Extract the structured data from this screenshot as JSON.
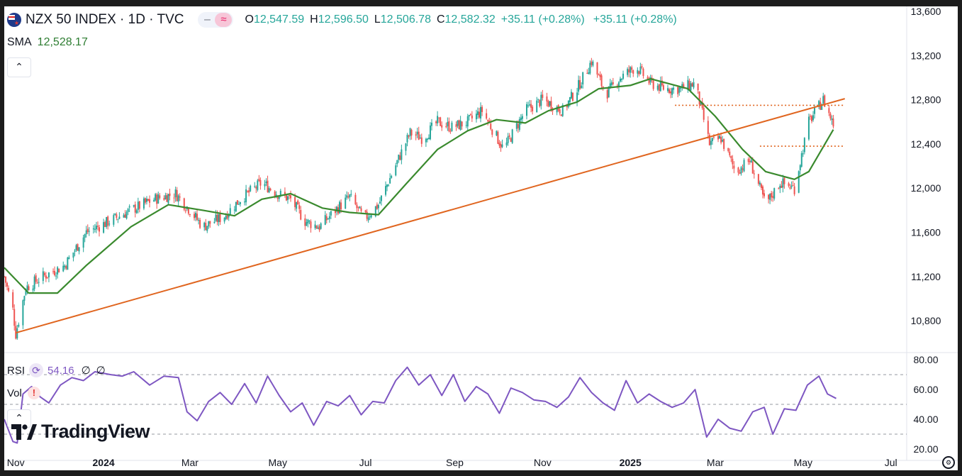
{
  "header": {
    "symbol": "NZX 50 INDEX · 1D · TVC",
    "ohlc": {
      "o_label": "O",
      "o": "12,547.59",
      "h_label": "H",
      "h": "12,596.50",
      "l_label": "L",
      "l": "12,506.78",
      "c_label": "C",
      "c": "12,582.32",
      "change": "+35.11 (+0.28%)",
      "change2": "+35.11 (+0.28%)"
    },
    "toggle_icons": [
      "line-toggle-icon",
      "wave-toggle-icon"
    ]
  },
  "sma": {
    "label": "SMA",
    "value": "12,528.17"
  },
  "rsi": {
    "label": "RSI",
    "value": "54.16",
    "na1": "∅",
    "na2": "∅"
  },
  "vol": {
    "label": "Vol",
    "warning": "!"
  },
  "branding": {
    "logo_text": "TradingView"
  },
  "colors": {
    "up": "#26a69a",
    "down": "#ef5350",
    "sma": "#3a8a2e",
    "trendline": "#e0651f",
    "rsi": "#7e57c2",
    "axis_text": "#131722"
  },
  "chart_data": [
    {
      "type": "candlestick",
      "title": "NZX 50 INDEX · 1D · TVC",
      "x_ticks": [
        "Nov",
        "2024",
        "Mar",
        "May",
        "Jul",
        "Sep",
        "Nov",
        "2025",
        "Mar",
        "May",
        "Jul"
      ],
      "x_tick_dates": [
        "2023-11-01",
        "2024-01-01",
        "2024-03-01",
        "2024-05-01",
        "2024-07-01",
        "2024-09-01",
        "2024-11-01",
        "2025-01-01",
        "2025-03-01",
        "2025-05-01",
        "2025-07-01"
      ],
      "xlim": [
        "2023-10-24",
        "2025-07-12"
      ],
      "y_ticks": [
        "13,600",
        "13,200",
        "12,800",
        "12,400",
        "12,000",
        "11,600",
        "11,200",
        "10,800"
      ],
      "ylim": [
        10550,
        13620
      ],
      "price_path": [
        [
          "2023-10-24",
          11200
        ],
        [
          "2023-10-30",
          10900
        ],
        [
          "2023-11-01",
          10680
        ],
        [
          "2023-11-08",
          11100
        ],
        [
          "2023-11-20",
          11200
        ],
        [
          "2023-12-05",
          11300
        ],
        [
          "2023-12-20",
          11600
        ],
        [
          "2024-01-05",
          11700
        ],
        [
          "2024-01-20",
          11800
        ],
        [
          "2024-02-05",
          11900
        ],
        [
          "2024-02-20",
          11950
        ],
        [
          "2024-03-01",
          11800
        ],
        [
          "2024-03-10",
          11650
        ],
        [
          "2024-03-25",
          11750
        ],
        [
          "2024-04-05",
          11900
        ],
        [
          "2024-04-20",
          12050
        ],
        [
          "2024-05-01",
          11950
        ],
        [
          "2024-05-10",
          11900
        ],
        [
          "2024-05-20",
          11700
        ],
        [
          "2024-05-30",
          11650
        ],
        [
          "2024-06-10",
          11800
        ],
        [
          "2024-06-20",
          11920
        ],
        [
          "2024-06-30",
          11720
        ],
        [
          "2024-07-10",
          11850
        ],
        [
          "2024-07-20",
          12150
        ],
        [
          "2024-08-01",
          12500
        ],
        [
          "2024-08-10",
          12450
        ],
        [
          "2024-08-20",
          12600
        ],
        [
          "2024-08-30",
          12550
        ],
        [
          "2024-09-10",
          12600
        ],
        [
          "2024-09-20",
          12700
        ],
        [
          "2024-10-05",
          12350
        ],
        [
          "2024-10-20",
          12700
        ],
        [
          "2024-11-01",
          12800
        ],
        [
          "2024-11-15",
          12700
        ],
        [
          "2024-11-25",
          12900
        ],
        [
          "2024-12-05",
          13150
        ],
        [
          "2024-12-15",
          12850
        ],
        [
          "2024-12-25",
          13000
        ],
        [
          "2025-01-05",
          13100
        ],
        [
          "2025-01-15",
          12950
        ],
        [
          "2025-01-25",
          12900
        ],
        [
          "2025-02-05",
          12900
        ],
        [
          "2025-02-15",
          12950
        ],
        [
          "2025-02-25",
          12400
        ],
        [
          "2025-03-05",
          12450
        ],
        [
          "2025-03-15",
          12150
        ],
        [
          "2025-03-25",
          12250
        ],
        [
          "2025-04-05",
          11850
        ],
        [
          "2025-04-15",
          12050
        ],
        [
          "2025-04-25",
          12000
        ],
        [
          "2025-05-05",
          12600
        ],
        [
          "2025-05-15",
          12800
        ],
        [
          "2025-05-22",
          12580
        ]
      ],
      "sma_path": [
        [
          "2023-10-24",
          11280
        ],
        [
          "2023-11-10",
          11050
        ],
        [
          "2023-11-30",
          11050
        ],
        [
          "2023-12-20",
          11300
        ],
        [
          "2024-01-20",
          11650
        ],
        [
          "2024-02-15",
          11850
        ],
        [
          "2024-03-10",
          11800
        ],
        [
          "2024-04-01",
          11750
        ],
        [
          "2024-04-20",
          11900
        ],
        [
          "2024-05-10",
          11950
        ],
        [
          "2024-06-01",
          11820
        ],
        [
          "2024-06-20",
          11780
        ],
        [
          "2024-07-10",
          11760
        ],
        [
          "2024-07-30",
          12050
        ],
        [
          "2024-08-20",
          12350
        ],
        [
          "2024-09-10",
          12520
        ],
        [
          "2024-09-30",
          12620
        ],
        [
          "2024-10-20",
          12590
        ],
        [
          "2024-11-05",
          12700
        ],
        [
          "2024-11-25",
          12780
        ],
        [
          "2024-12-10",
          12900
        ],
        [
          "2025-01-01",
          12930
        ],
        [
          "2025-01-15",
          12990
        ],
        [
          "2025-02-10",
          12900
        ],
        [
          "2025-03-01",
          12650
        ],
        [
          "2025-03-20",
          12350
        ],
        [
          "2025-04-05",
          12150
        ],
        [
          "2025-04-25",
          12080
        ],
        [
          "2025-05-05",
          12150
        ],
        [
          "2025-05-22",
          12530
        ]
      ],
      "trendline": [
        [
          "2023-11-01",
          10690
        ],
        [
          "2025-05-30",
          12810
        ]
      ],
      "resistance_lines": [
        {
          "from": "2025-02-01",
          "to": "2025-05-30",
          "value": 12750
        },
        {
          "from": "2025-04-01",
          "to": "2025-05-30",
          "value": 12380
        }
      ]
    },
    {
      "type": "line",
      "series": [
        {
          "name": "RSI",
          "color": "#7e57c2"
        }
      ],
      "y_ticks": [
        "80.00",
        "60.00",
        "40.00",
        "20.00"
      ],
      "ylim": [
        19,
        82
      ],
      "levels": [
        70,
        50,
        30
      ],
      "points": [
        [
          "2023-10-24",
          40
        ],
        [
          "2023-10-30",
          25
        ],
        [
          "2023-11-02",
          24
        ],
        [
          "2023-11-06",
          57
        ],
        [
          "2023-11-12",
          62
        ],
        [
          "2023-11-18",
          55
        ],
        [
          "2023-11-24",
          51
        ],
        [
          "2023-12-02",
          63
        ],
        [
          "2023-12-10",
          68
        ],
        [
          "2023-12-18",
          66
        ],
        [
          "2023-12-26",
          72
        ],
        [
          "2024-01-06",
          70
        ],
        [
          "2024-01-14",
          69
        ],
        [
          "2024-01-22",
          72
        ],
        [
          "2024-02-02",
          63
        ],
        [
          "2024-02-12",
          69
        ],
        [
          "2024-02-22",
          68
        ],
        [
          "2024-02-28",
          45
        ],
        [
          "2024-03-06",
          39
        ],
        [
          "2024-03-14",
          52
        ],
        [
          "2024-03-22",
          58
        ],
        [
          "2024-03-30",
          50
        ],
        [
          "2024-04-08",
          64
        ],
        [
          "2024-04-16",
          51
        ],
        [
          "2024-04-24",
          69
        ],
        [
          "2024-05-02",
          56
        ],
        [
          "2024-05-10",
          45
        ],
        [
          "2024-05-18",
          51
        ],
        [
          "2024-05-26",
          36
        ],
        [
          "2024-06-04",
          52
        ],
        [
          "2024-06-12",
          49
        ],
        [
          "2024-06-20",
          56
        ],
        [
          "2024-06-28",
          43
        ],
        [
          "2024-07-06",
          52
        ],
        [
          "2024-07-14",
          51
        ],
        [
          "2024-07-22",
          66
        ],
        [
          "2024-07-30",
          75
        ],
        [
          "2024-08-07",
          63
        ],
        [
          "2024-08-15",
          70
        ],
        [
          "2024-08-23",
          56
        ],
        [
          "2024-08-31",
          70
        ],
        [
          "2024-09-08",
          52
        ],
        [
          "2024-09-16",
          62
        ],
        [
          "2024-09-24",
          57
        ],
        [
          "2024-10-02",
          44
        ],
        [
          "2024-10-10",
          61
        ],
        [
          "2024-10-18",
          58
        ],
        [
          "2024-10-26",
          53
        ],
        [
          "2024-11-03",
          52
        ],
        [
          "2024-11-11",
          48
        ],
        [
          "2024-11-19",
          55
        ],
        [
          "2024-11-27",
          68
        ],
        [
          "2024-12-05",
          58
        ],
        [
          "2024-12-13",
          51
        ],
        [
          "2024-12-21",
          46
        ],
        [
          "2024-12-29",
          66
        ],
        [
          "2025-01-06",
          51
        ],
        [
          "2025-01-14",
          57
        ],
        [
          "2025-01-22",
          52
        ],
        [
          "2025-01-30",
          48
        ],
        [
          "2025-02-07",
          51
        ],
        [
          "2025-02-15",
          60
        ],
        [
          "2025-02-23",
          28
        ],
        [
          "2025-03-03",
          40
        ],
        [
          "2025-03-11",
          34
        ],
        [
          "2025-03-19",
          32
        ],
        [
          "2025-03-27",
          45
        ],
        [
          "2025-04-04",
          48
        ],
        [
          "2025-04-10",
          30
        ],
        [
          "2025-04-18",
          47
        ],
        [
          "2025-04-26",
          46
        ],
        [
          "2025-05-04",
          63
        ],
        [
          "2025-05-12",
          69
        ],
        [
          "2025-05-18",
          57
        ],
        [
          "2025-05-24",
          54
        ]
      ]
    }
  ]
}
